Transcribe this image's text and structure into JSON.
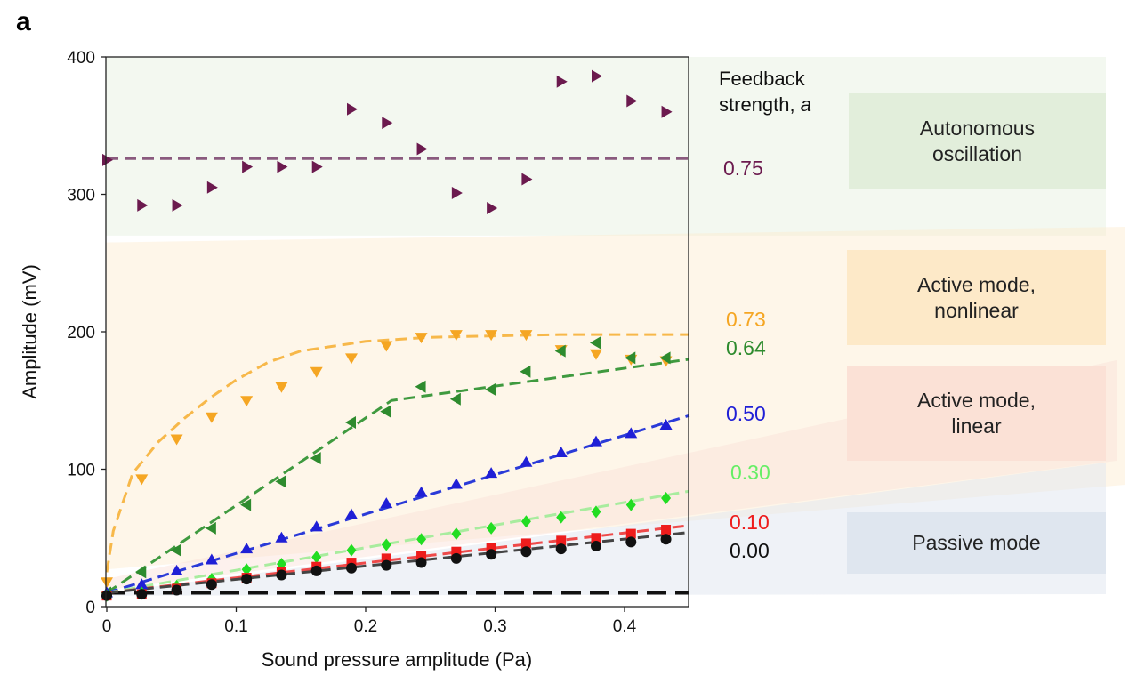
{
  "panel_label": "a",
  "legend": {
    "heading_line1": "Feedback",
    "heading_line2": "strength, ",
    "heading_symbol": "a"
  },
  "regimes": [
    {
      "name": "autonomous",
      "line1": "Autonomous",
      "line2": "oscillation",
      "color": "#e2eedb"
    },
    {
      "name": "nonlinear",
      "line1": "Active mode,",
      "line2": "nonlinear",
      "color": "#fde9c8"
    },
    {
      "name": "linear",
      "line1": "Active mode,",
      "line2": "linear",
      "color": "#fbe1d6"
    },
    {
      "name": "passive",
      "line1": "Passive mode",
      "line2": "",
      "color": "#dfe6ef"
    }
  ],
  "chart_data": {
    "type": "scatter",
    "xlabel": "Sound pressure amplitude (Pa)",
    "ylabel": "Amplitude (mV)",
    "xlim": [
      0,
      0.45
    ],
    "ylim": [
      0,
      400
    ],
    "xticks": [
      "0",
      "0.1",
      "0.2",
      "0.3",
      "0.4"
    ],
    "yticks": [
      "0",
      "100",
      "200",
      "300",
      "400"
    ],
    "x": [
      0.0,
      0.027,
      0.054,
      0.081,
      0.108,
      0.135,
      0.162,
      0.189,
      0.216,
      0.243,
      0.27,
      0.297,
      0.324,
      0.351,
      0.378,
      0.405,
      0.432
    ],
    "series": [
      {
        "name": "0.75",
        "color": "#6b1a4e",
        "fit_color": "#8a5a7e",
        "marker": "triangle-right",
        "values": [
          325,
          292,
          292,
          305,
          320,
          320,
          320,
          362,
          352,
          333,
          301,
          290,
          311,
          382,
          386,
          368,
          360
        ],
        "fit": [
          [
            0,
            326
          ],
          [
            0.45,
            326
          ]
        ]
      },
      {
        "name": "0.73",
        "color": "#f5a623",
        "fit_color": "#f7b84a",
        "marker": "triangle-down",
        "values": [
          18,
          93,
          122,
          138,
          150,
          160,
          171,
          181,
          190,
          196,
          198,
          198,
          198,
          187,
          184,
          180,
          179
        ],
        "fit": [
          [
            0,
            25
          ],
          [
            0.005,
            55
          ],
          [
            0.02,
            97
          ],
          [
            0.04,
            120
          ],
          [
            0.06,
            137
          ],
          [
            0.08,
            152
          ],
          [
            0.1,
            165
          ],
          [
            0.125,
            178
          ],
          [
            0.15,
            186
          ],
          [
            0.2,
            193
          ],
          [
            0.25,
            196
          ],
          [
            0.3,
            197
          ],
          [
            0.35,
            198
          ],
          [
            0.45,
            198
          ]
        ]
      },
      {
        "name": "0.64",
        "color": "#2e8b2e",
        "fit_color": "#3f9a3f",
        "marker": "triangle-left",
        "values": [
          10,
          25,
          41,
          57,
          74,
          91,
          108,
          134,
          142,
          160,
          151,
          158,
          171,
          186,
          192,
          181,
          181
        ],
        "fit": [
          [
            0,
            10
          ],
          [
            0.22,
            150
          ],
          [
            0.45,
            180
          ]
        ]
      },
      {
        "name": "0.50",
        "color": "#1f1fd6",
        "fit_color": "#2a3ad8",
        "marker": "triangle-up",
        "values": [
          10,
          16,
          26,
          34,
          42,
          50,
          58,
          67,
          75,
          83,
          89,
          97,
          105,
          112,
          120,
          126,
          132
        ],
        "fit": [
          [
            0,
            10
          ],
          [
            0.45,
            139
          ]
        ]
      },
      {
        "name": "0.30",
        "color": "#22dd22",
        "fit_color": "#a8ec9e",
        "marker": "diamond",
        "values": [
          8,
          10,
          15,
          20,
          27,
          31,
          36,
          41,
          45,
          49,
          53,
          57,
          62,
          65,
          69,
          74,
          79
        ],
        "fit": [
          [
            0,
            10
          ],
          [
            0.45,
            84
          ]
        ]
      },
      {
        "name": "0.10",
        "color": "#ee1c1c",
        "fit_color": "#ee4a4a",
        "marker": "square",
        "values": [
          8,
          9,
          13,
          17,
          21,
          25,
          29,
          32,
          35,
          37,
          40,
          43,
          46,
          48,
          50,
          53,
          56
        ],
        "fit": [
          [
            0,
            10
          ],
          [
            0.45,
            59
          ]
        ]
      },
      {
        "name": "0.00",
        "color": "#111111",
        "fit_color": "#444444",
        "marker": "circle",
        "values": [
          8,
          9,
          12,
          16,
          20,
          23,
          26,
          28,
          30,
          32,
          35,
          38,
          40,
          42,
          44,
          47,
          49
        ],
        "fit": [
          [
            0,
            10
          ],
          [
            0.45,
            54
          ]
        ]
      }
    ],
    "baseline": {
      "value": 10,
      "color": "#111111"
    }
  }
}
